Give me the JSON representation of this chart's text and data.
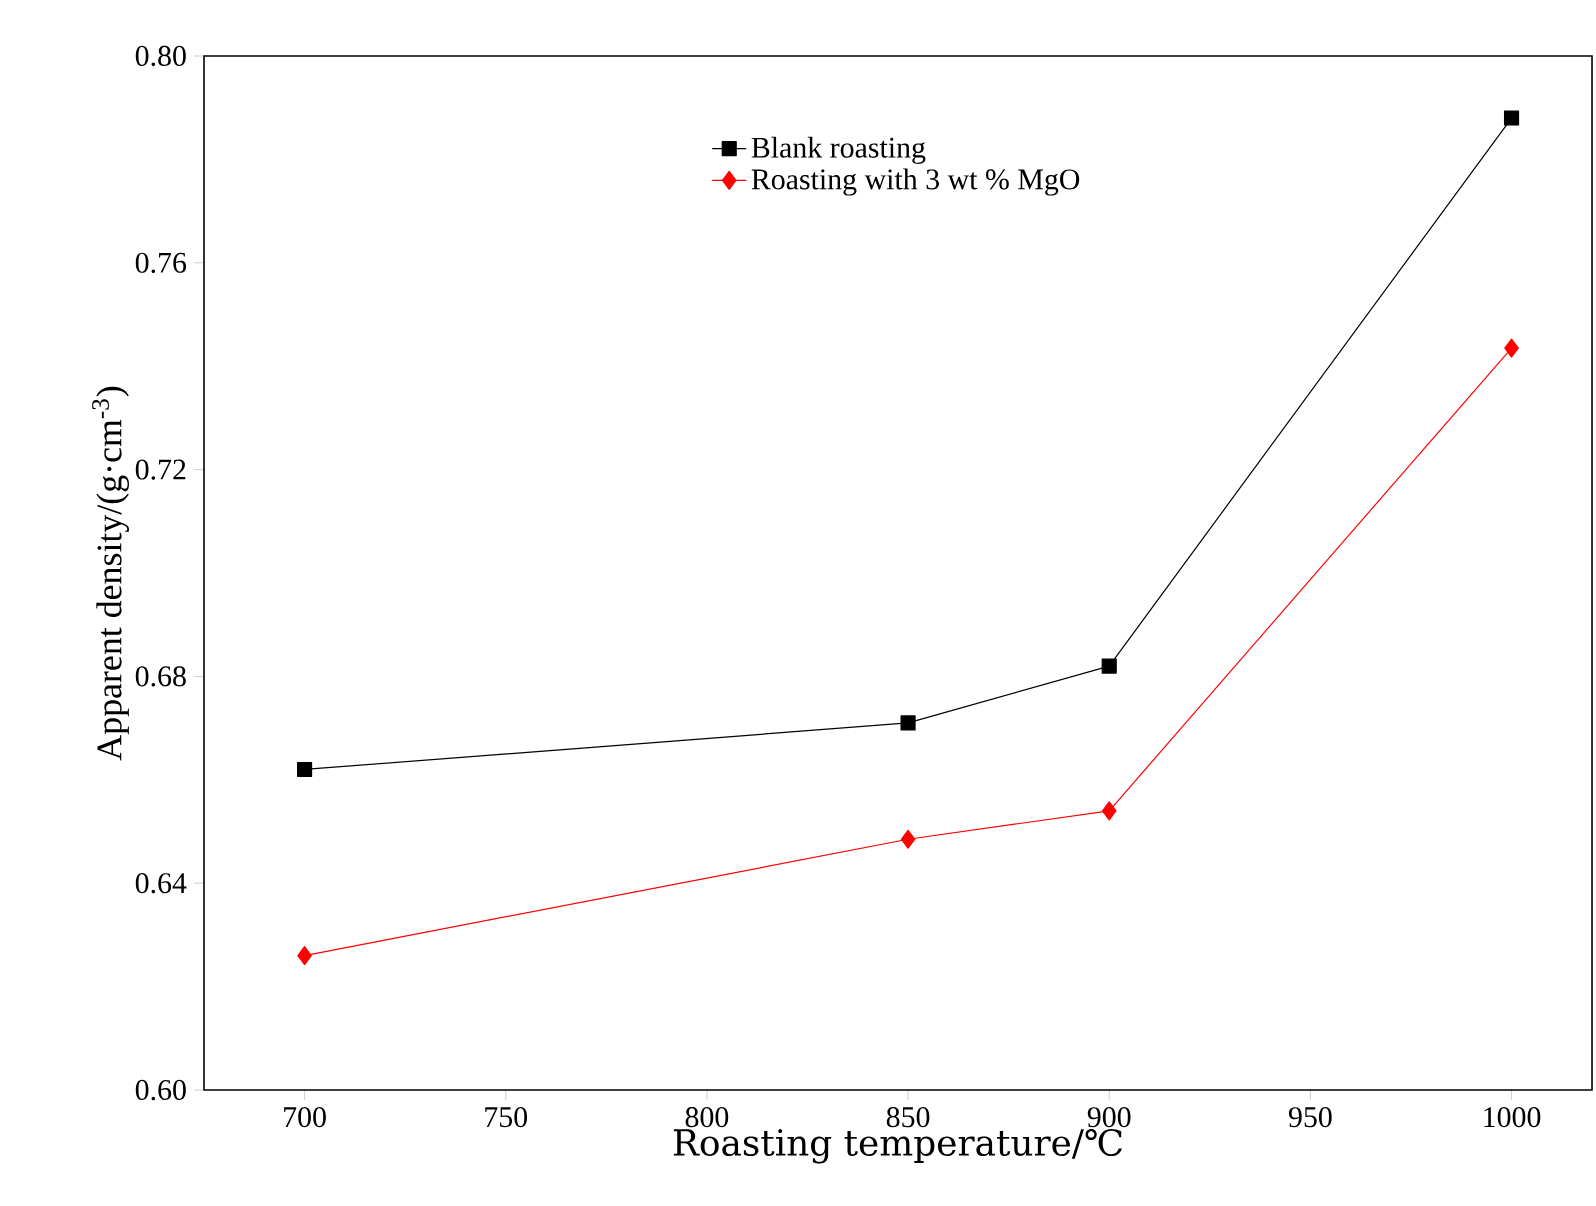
{
  "chart_data": {
    "type": "line",
    "xlabel": "Roasting temperature/℃",
    "ylabel": "Apparent density/(g·cm$^{-3}$)",
    "x": [
      700,
      850,
      900,
      1000
    ],
    "series": [
      {
        "name": "Blank roasting",
        "color": "#000000",
        "marker": "square",
        "values": [
          0.662,
          0.671,
          0.682,
          0.788
        ]
      },
      {
        "name": "Roasting with 3 wt % MgO",
        "color": "#ff0000",
        "marker": "diamond",
        "values": [
          0.626,
          0.6485,
          0.654,
          0.7435
        ]
      }
    ],
    "xlim": [
      675,
      1020
    ],
    "ylim": [
      0.6,
      0.8
    ],
    "xticks": [
      700,
      750,
      800,
      850,
      900,
      950,
      1000
    ],
    "yticks": [
      {
        "value": 0.6,
        "label": "0.60"
      },
      {
        "value": 0.64,
        "label": "0.64"
      },
      {
        "value": 0.68,
        "label": "0.68"
      },
      {
        "value": 0.72,
        "label": "0.72"
      },
      {
        "value": 0.76,
        "label": "0.76"
      },
      {
        "value": 0.8,
        "label": "0.80"
      }
    ],
    "legend": "top",
    "grid": false,
    "line_style": "solid"
  }
}
